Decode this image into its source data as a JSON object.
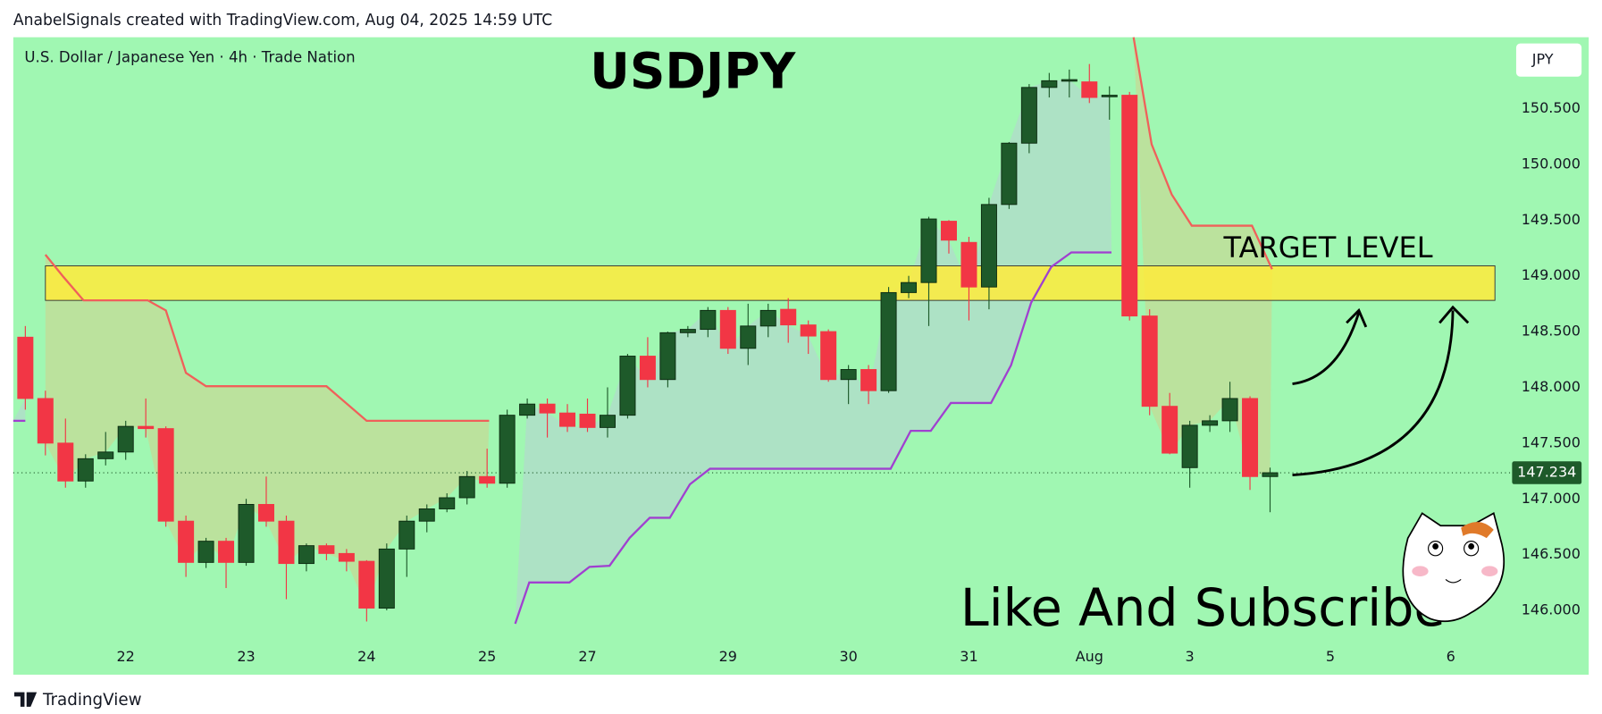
{
  "header": "AnabelSignals created with TradingView.com, Aug 04, 2025 14:59 UTC",
  "footer": "TradingView",
  "chart_data": {
    "type": "candlestick",
    "symbol": "U.S. Dollar / Japanese Yen · 4h · Trade Nation",
    "title": "USDJPY",
    "annotations": [
      "TARGET LEVEL",
      "Like And Subscribe"
    ],
    "currency": "JPY",
    "up_color": "#1e5a2a",
    "down_color": "#f23645",
    "open": [
      148.45,
      147.9,
      147.5,
      147.16,
      147.36,
      147.42,
      147.65,
      147.63,
      146.8,
      146.43,
      146.62,
      146.43,
      146.95,
      146.8,
      146.42,
      146.58,
      146.51,
      146.44,
      146.02,
      146.55,
      146.8,
      146.91,
      147.01,
      147.2,
      147.14,
      147.75,
      147.85,
      147.77,
      147.76,
      147.64,
      147.75,
      148.28,
      148.07,
      148.49,
      148.52,
      148.69,
      148.35,
      148.55,
      148.7,
      148.56,
      148.5,
      148.07,
      148.16,
      147.97,
      148.85,
      148.94,
      149.49,
      149.3,
      148.9,
      149.64,
      150.19,
      150.69,
      150.75,
      150.74,
      150.61,
      150.62,
      148.64,
      147.83,
      147.28,
      147.66,
      147.7,
      147.9,
      147.2
    ],
    "high": [
      148.55,
      147.97,
      147.72,
      147.4,
      147.6,
      147.7,
      147.9,
      147.65,
      146.85,
      146.65,
      146.65,
      147.0,
      147.2,
      146.85,
      146.6,
      146.6,
      146.55,
      146.45,
      146.6,
      146.85,
      146.95,
      147.05,
      147.25,
      147.45,
      147.8,
      147.9,
      147.9,
      147.85,
      147.9,
      148.0,
      148.3,
      148.45,
      148.5,
      148.55,
      148.72,
      148.72,
      148.75,
      148.75,
      148.8,
      148.6,
      148.52,
      148.2,
      148.2,
      148.9,
      149.0,
      149.53,
      149.5,
      149.35,
      149.7,
      150.2,
      150.72,
      150.82,
      150.85,
      150.9,
      150.7,
      150.65,
      148.7,
      147.95,
      147.7,
      147.75,
      148.05,
      147.92,
      147.28
    ],
    "low": [
      147.8,
      147.39,
      147.1,
      147.1,
      147.3,
      147.35,
      147.55,
      146.75,
      146.3,
      146.38,
      146.2,
      146.4,
      146.75,
      146.1,
      146.35,
      146.45,
      146.35,
      145.9,
      146.0,
      146.3,
      146.7,
      146.88,
      146.95,
      147.1,
      147.1,
      147.72,
      147.55,
      147.6,
      147.6,
      147.55,
      147.72,
      148.0,
      148.0,
      148.45,
      148.45,
      148.3,
      148.2,
      148.45,
      148.4,
      148.3,
      148.05,
      147.85,
      147.85,
      147.95,
      148.8,
      148.55,
      149.2,
      148.6,
      148.7,
      149.6,
      150.1,
      150.6,
      150.6,
      150.55,
      150.4,
      148.6,
      147.75,
      147.4,
      147.1,
      147.6,
      147.6,
      147.08,
      146.88
    ],
    "close": [
      147.9,
      147.5,
      147.16,
      147.36,
      147.42,
      147.65,
      147.63,
      146.8,
      146.43,
      146.62,
      146.43,
      146.95,
      146.8,
      146.42,
      146.58,
      146.51,
      146.44,
      146.02,
      146.55,
      146.8,
      146.91,
      147.01,
      147.2,
      147.14,
      147.75,
      147.85,
      147.77,
      147.65,
      147.64,
      147.75,
      148.28,
      148.07,
      148.49,
      148.52,
      148.69,
      148.35,
      148.55,
      148.69,
      148.56,
      148.46,
      148.07,
      148.16,
      147.97,
      148.85,
      148.94,
      149.51,
      149.32,
      148.9,
      149.64,
      150.19,
      150.69,
      150.75,
      150.76,
      150.6,
      150.62,
      148.64,
      147.83,
      147.41,
      147.66,
      147.7,
      147.9,
      147.2,
      147.234
    ],
    "last_price": 147.234,
    "xlim": [
      -0.6,
      73.8
    ],
    "xticks": [
      {
        "value": 5,
        "label": "22"
      },
      {
        "value": 11,
        "label": "23"
      },
      {
        "value": 17,
        "label": "24"
      },
      {
        "value": 23,
        "label": "25"
      },
      {
        "value": 28,
        "label": "27"
      },
      {
        "value": 35,
        "label": "29"
      },
      {
        "value": 41,
        "label": "30"
      },
      {
        "value": 47,
        "label": "31"
      },
      {
        "value": 53,
        "label": "Aug"
      },
      {
        "value": 58,
        "label": "3"
      },
      {
        "value": 65,
        "label": "5"
      },
      {
        "value": 71,
        "label": "6"
      }
    ],
    "ylim": [
      145.72,
      151.14
    ],
    "yticks": [
      {
        "value": 146,
        "label": "146.000"
      },
      {
        "value": 146.5,
        "label": "146.500"
      },
      {
        "value": 147,
        "label": "147.000"
      },
      {
        "value": 147.5,
        "label": "147.500"
      },
      {
        "value": 148,
        "label": "148.000"
      },
      {
        "value": 148.5,
        "label": "148.500"
      },
      {
        "value": 149,
        "label": "149.000"
      },
      {
        "value": 149.5,
        "label": "149.500"
      },
      {
        "value": 150,
        "label": "150.000"
      },
      {
        "value": 150.5,
        "label": "150.500"
      }
    ],
    "zones": [
      {
        "low": 148.78,
        "high": 149.09,
        "x0": 1.0,
        "x1": 73.2,
        "color": "#ffeb3b"
      }
    ],
    "lines": [
      {
        "color": "#f0605a",
        "fill": "rgba(220,200,130,0.45)",
        "points": [
          [
            1.0,
            149.19
          ],
          [
            1.9,
            148.99
          ],
          [
            2.9,
            148.78
          ],
          [
            6.1,
            148.78
          ],
          [
            7.0,
            148.69
          ],
          [
            8.0,
            148.13
          ],
          [
            9.0,
            148.01
          ],
          [
            15.0,
            148.01
          ],
          [
            17.0,
            147.7
          ],
          [
            23.1,
            147.7
          ]
        ]
      },
      {
        "color": "#f0605a",
        "fill": "rgba(220,200,130,0.45)",
        "points": [
          [
            55.2,
            151.14
          ],
          [
            56.1,
            150.18
          ],
          [
            57.1,
            149.73
          ],
          [
            58.1,
            149.45
          ],
          [
            61.1,
            149.45
          ],
          [
            62.1,
            149.06
          ]
        ]
      },
      {
        "color": "#a040d0",
        "fill": "rgba(185,205,215,0.5)",
        "points": [
          [
            -0.6,
            147.7
          ],
          [
            0,
            147.7
          ]
        ]
      },
      {
        "color": "#a040d0",
        "fill": "rgba(185,205,215,0.5)",
        "points": [
          [
            24.4,
            145.88
          ],
          [
            25.1,
            146.25
          ],
          [
            27.1,
            146.25
          ],
          [
            28.1,
            146.39
          ],
          [
            29.1,
            146.4
          ],
          [
            30.1,
            146.65
          ],
          [
            31.1,
            146.83
          ],
          [
            32.1,
            146.83
          ],
          [
            33.1,
            147.13
          ],
          [
            34.1,
            147.27
          ],
          [
            43.1,
            147.27
          ],
          [
            44.1,
            147.61
          ],
          [
            45.1,
            147.61
          ],
          [
            46.1,
            147.86
          ],
          [
            48.1,
            147.86
          ],
          [
            49.1,
            148.2
          ],
          [
            50.1,
            148.76
          ],
          [
            51.1,
            149.08
          ],
          [
            52.1,
            149.21
          ],
          [
            54.1,
            149.21
          ]
        ]
      }
    ]
  }
}
